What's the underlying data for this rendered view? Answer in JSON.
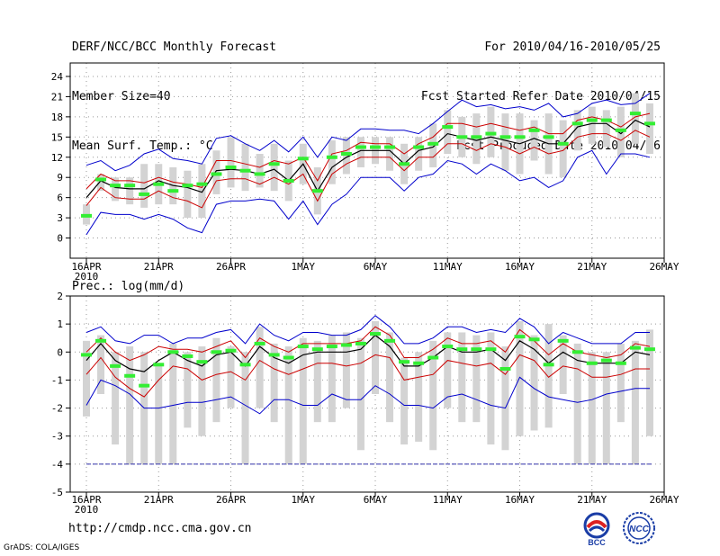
{
  "header": {
    "title": "DERF/NCC/BCC Monthly Forecast",
    "member_size": "Member Size=40",
    "variable": "Mean Surf. Temp.: °C",
    "period": "For 2010/04/16-2010/05/25",
    "started": "Fcst Started Refer Date 2010/04/15",
    "produced": "Fcst Produced Date 2010/04/16"
  },
  "footer": {
    "url": "http://cmdp.ncc.cma.gov.cn",
    "credit": "GrADS: COLA/IGES"
  },
  "logos": {
    "bcc": "BCC",
    "ncc": "NCC"
  },
  "colors": {
    "max": "#0000cc",
    "min": "#0000cc",
    "spread": "#cc0000",
    "mean": "#000000",
    "box": "#d3d3d3",
    "obs": "#33ee33",
    "grid": "#999999"
  },
  "chart_data": [
    {
      "type": "box-line",
      "title": "",
      "ylabel": "Mean Surf. Temp.: °C",
      "ylim": [
        -3,
        26
      ],
      "yticks": [
        0,
        3,
        6,
        9,
        12,
        15,
        18,
        21,
        24
      ],
      "xticks": [
        {
          "day": 0,
          "label": "16APR",
          "sublabel": "2010"
        },
        {
          "day": 5,
          "label": "21APR"
        },
        {
          "day": 10,
          "label": "26APR"
        },
        {
          "day": 15,
          "label": "1MAY"
        },
        {
          "day": 20,
          "label": "6MAY"
        },
        {
          "day": 25,
          "label": "11MAY"
        },
        {
          "day": 30,
          "label": "16MAY"
        },
        {
          "day": 35,
          "label": "21MAY"
        },
        {
          "day": 40,
          "label": "26MAY"
        }
      ],
      "grid": true,
      "days": [
        0,
        1,
        2,
        3,
        4,
        5,
        6,
        7,
        8,
        9,
        10,
        11,
        12,
        13,
        14,
        15,
        16,
        17,
        18,
        19,
        20,
        21,
        22,
        23,
        24,
        25,
        26,
        27,
        28,
        29,
        30,
        31,
        32,
        33,
        34,
        35,
        36,
        37,
        38,
        39
      ],
      "series": [
        {
          "name": "max",
          "values": [
            10.8,
            11.5,
            10.0,
            10.8,
            12.5,
            13.2,
            11.8,
            11.5,
            11.0,
            14.8,
            15.2,
            14.0,
            13.0,
            14.5,
            12.8,
            15.0,
            12.0,
            15.0,
            14.5,
            16.2,
            16.2,
            16.0,
            16.0,
            15.5,
            17.0,
            18.8,
            20.5,
            19.5,
            19.8,
            19.2,
            19.5,
            19.0,
            20.0,
            18.0,
            18.5,
            20.0,
            20.5,
            19.8,
            20.0,
            21.5
          ]
        },
        {
          "name": "upper",
          "values": [
            7.3,
            9.5,
            8.5,
            8.5,
            8.2,
            9.0,
            8.3,
            8.0,
            7.5,
            11.5,
            11.5,
            11.0,
            10.5,
            11.5,
            11.0,
            12.0,
            8.5,
            12.5,
            13.0,
            14.2,
            14.0,
            14.0,
            12.5,
            14.0,
            15.0,
            17.0,
            17.0,
            16.5,
            17.0,
            16.5,
            16.0,
            16.5,
            15.5,
            15.5,
            17.5,
            18.0,
            17.5,
            16.5,
            18.0,
            18.5
          ]
        },
        {
          "name": "mean",
          "values": [
            6.0,
            8.5,
            7.5,
            7.3,
            7.3,
            8.5,
            7.8,
            7.5,
            6.8,
            10.0,
            10.2,
            10.0,
            9.5,
            10.2,
            8.5,
            11.0,
            7.0,
            10.5,
            12.0,
            13.0,
            13.0,
            13.0,
            11.0,
            13.0,
            13.5,
            15.5,
            15.0,
            14.5,
            15.0,
            14.5,
            14.0,
            14.8,
            14.0,
            14.0,
            16.5,
            17.0,
            17.0,
            15.5,
            17.5,
            16.5
          ]
        },
        {
          "name": "lower",
          "values": [
            4.8,
            7.5,
            6.0,
            5.8,
            5.8,
            7.0,
            6.0,
            5.5,
            4.5,
            8.5,
            8.8,
            8.8,
            8.0,
            9.0,
            8.0,
            9.5,
            5.5,
            9.5,
            11.0,
            12.0,
            12.0,
            12.0,
            10.0,
            12.0,
            12.0,
            14.0,
            14.0,
            13.0,
            14.0,
            13.5,
            12.5,
            13.5,
            12.5,
            13.0,
            15.0,
            15.5,
            15.5,
            14.5,
            16.0,
            15.0
          ]
        },
        {
          "name": "min",
          "values": [
            0.5,
            3.8,
            3.5,
            3.5,
            2.8,
            3.5,
            2.8,
            1.5,
            0.8,
            5.0,
            5.5,
            5.5,
            5.8,
            5.5,
            2.8,
            5.5,
            2.0,
            5.0,
            6.5,
            9.0,
            9.0,
            9.0,
            7.0,
            9.0,
            9.5,
            11.5,
            11.0,
            9.5,
            11.0,
            10.0,
            8.5,
            9.0,
            7.5,
            8.5,
            12.0,
            13.0,
            9.5,
            12.5,
            12.5,
            12.0
          ]
        },
        {
          "name": "box_low",
          "values": [
            2.0,
            7.0,
            5.5,
            5.0,
            4.5,
            5.0,
            5.0,
            3.0,
            3.0,
            6.5,
            7.5,
            7.0,
            7.5,
            7.0,
            5.5,
            8.0,
            3.5,
            8.0,
            9.5,
            10.5,
            11.0,
            10.0,
            8.0,
            10.0,
            10.5,
            12.5,
            12.0,
            11.0,
            12.0,
            10.0,
            9.5,
            11.5,
            9.5,
            9.0,
            13.0,
            14.0,
            13.5,
            12.0,
            14.0,
            12.5
          ]
        },
        {
          "name": "box_high",
          "values": [
            5.0,
            9.5,
            9.0,
            9.0,
            11.0,
            11.0,
            10.5,
            10.0,
            11.0,
            13.0,
            15.0,
            14.0,
            12.5,
            14.0,
            11.5,
            14.0,
            10.5,
            14.5,
            15.0,
            15.0,
            15.0,
            15.0,
            14.0,
            15.0,
            17.0,
            19.0,
            18.0,
            18.5,
            19.5,
            18.5,
            18.5,
            17.5,
            18.5,
            17.5,
            19.0,
            19.5,
            19.0,
            19.5,
            21.5,
            20.0
          ]
        },
        {
          "name": "observed",
          "values": [
            3.3,
            8.7,
            7.8,
            7.8,
            6.5,
            8.0,
            7.0,
            7.8,
            8.0,
            9.5,
            10.5,
            10.0,
            9.5,
            11.0,
            8.5,
            11.8,
            7.0,
            12.0,
            12.5,
            13.5,
            13.5,
            13.5,
            11.0,
            13.5,
            14.0,
            16.5,
            15.0,
            15.0,
            15.5,
            15.0,
            15.0,
            16.0,
            15.0,
            14.0,
            17.0,
            17.5,
            17.5,
            16.0,
            18.5,
            17.0
          ]
        }
      ]
    },
    {
      "type": "box-line",
      "title": "Prec.: log(mm/d)",
      "ylabel": "Prec.: log(mm/d)",
      "ylim": [
        -5,
        2
      ],
      "yticks": [
        -5,
        -4,
        -3,
        -2,
        -1,
        0,
        1,
        2
      ],
      "xticks": [
        {
          "day": 0,
          "label": "16APR",
          "sublabel": "2010"
        },
        {
          "day": 5,
          "label": "21APR"
        },
        {
          "day": 10,
          "label": "26APR"
        },
        {
          "day": 15,
          "label": "1MAY"
        },
        {
          "day": 20,
          "label": "6MAY"
        },
        {
          "day": 25,
          "label": "11MAY"
        },
        {
          "day": 30,
          "label": "16MAY"
        },
        {
          "day": 35,
          "label": "21MAY"
        },
        {
          "day": 40,
          "label": "26MAY"
        }
      ],
      "grid": true,
      "baseline": -4,
      "days": [
        0,
        1,
        2,
        3,
        4,
        5,
        6,
        7,
        8,
        9,
        10,
        11,
        12,
        13,
        14,
        15,
        16,
        17,
        18,
        19,
        20,
        21,
        22,
        23,
        24,
        25,
        26,
        27,
        28,
        29,
        30,
        31,
        32,
        33,
        34,
        35,
        36,
        37,
        38,
        39
      ],
      "series": [
        {
          "name": "max",
          "values": [
            0.7,
            0.9,
            0.4,
            0.3,
            0.6,
            0.6,
            0.3,
            0.5,
            0.5,
            0.7,
            0.8,
            0.3,
            1.0,
            0.6,
            0.4,
            0.7,
            0.7,
            0.6,
            0.6,
            0.8,
            1.3,
            0.9,
            0.3,
            0.3,
            0.5,
            0.9,
            0.9,
            0.7,
            0.8,
            0.7,
            1.2,
            0.9,
            0.3,
            0.7,
            0.5,
            0.3,
            0.3,
            0.3,
            0.7,
            0.7
          ]
        },
        {
          "name": "upper",
          "values": [
            0.0,
            0.5,
            0.0,
            -0.3,
            -0.1,
            0.2,
            0.1,
            0.1,
            0.0,
            0.2,
            0.4,
            -0.2,
            0.5,
            0.2,
            0.0,
            0.3,
            0.3,
            0.3,
            0.3,
            0.4,
            0.9,
            0.6,
            -0.2,
            -0.2,
            0.1,
            0.5,
            0.3,
            0.3,
            0.4,
            0.0,
            0.8,
            0.4,
            -0.1,
            0.3,
            0.0,
            -0.1,
            -0.2,
            -0.1,
            0.3,
            0.2
          ]
        },
        {
          "name": "mean",
          "values": [
            -0.3,
            0.3,
            -0.3,
            -0.6,
            -0.7,
            -0.3,
            0.0,
            -0.3,
            -0.5,
            -0.1,
            0.0,
            -0.5,
            0.2,
            -0.2,
            -0.4,
            -0.1,
            0.0,
            0.0,
            0.0,
            0.1,
            0.6,
            0.2,
            -0.5,
            -0.5,
            -0.2,
            0.2,
            0.0,
            0.0,
            0.1,
            -0.3,
            0.4,
            0.1,
            -0.4,
            0.0,
            -0.3,
            -0.4,
            -0.4,
            -0.4,
            0.0,
            -0.1
          ]
        },
        {
          "name": "lower",
          "values": [
            -0.8,
            -0.2,
            -0.9,
            -1.3,
            -1.6,
            -1.0,
            -0.5,
            -0.6,
            -1.0,
            -0.8,
            -0.7,
            -1.0,
            -0.3,
            -0.6,
            -0.8,
            -0.6,
            -0.4,
            -0.4,
            -0.5,
            -0.4,
            -0.1,
            -0.2,
            -1.0,
            -0.9,
            -0.8,
            -0.3,
            -0.4,
            -0.5,
            -0.4,
            -0.8,
            -0.1,
            -0.3,
            -0.9,
            -0.5,
            -0.6,
            -0.9,
            -0.9,
            -0.8,
            -0.6,
            -0.6
          ]
        },
        {
          "name": "min",
          "values": [
            -1.9,
            -1.0,
            -1.2,
            -1.5,
            -2.0,
            -2.0,
            -1.9,
            -1.8,
            -1.8,
            -1.7,
            -1.6,
            -1.9,
            -2.2,
            -1.7,
            -1.7,
            -1.9,
            -1.9,
            -1.5,
            -1.7,
            -1.7,
            -1.2,
            -1.5,
            -1.9,
            -1.9,
            -2.0,
            -1.6,
            -1.5,
            -1.7,
            -1.9,
            -2.0,
            -0.9,
            -1.3,
            -1.6,
            -1.7,
            -1.8,
            -1.7,
            -1.5,
            -1.4,
            -1.3,
            -1.3
          ]
        },
        {
          "name": "box_low",
          "values": [
            -2.3,
            -1.5,
            -3.3,
            -4.0,
            -4.0,
            -4.0,
            -4.0,
            -2.7,
            -3.0,
            -2.5,
            -2.0,
            -4.0,
            -2.0,
            -2.5,
            -4.0,
            -4.0,
            -2.5,
            -2.5,
            -2.0,
            -3.5,
            -1.5,
            -2.5,
            -3.3,
            -3.2,
            -3.5,
            -2.0,
            -2.5,
            -2.5,
            -3.3,
            -3.5,
            -3.0,
            -2.8,
            -2.7,
            -1.5,
            -4.0,
            -4.0,
            -4.0,
            -2.5,
            -4.0,
            -3.0
          ]
        },
        {
          "name": "box_high",
          "values": [
            0.4,
            0.6,
            0.0,
            0.2,
            0.0,
            -0.4,
            0.3,
            0.0,
            0.2,
            0.5,
            0.2,
            0.0,
            0.9,
            0.3,
            0.2,
            0.5,
            0.4,
            0.6,
            0.7,
            0.5,
            1.1,
            0.7,
            -0.2,
            0.0,
            0.4,
            0.7,
            0.7,
            0.6,
            0.7,
            0.2,
            1.1,
            0.6,
            1.0,
            0.6,
            0.3,
            0.0,
            0.0,
            0.3,
            0.4,
            0.8
          ]
        },
        {
          "name": "observed",
          "values": [
            -0.1,
            0.4,
            -0.5,
            -0.85,
            -1.2,
            -0.45,
            0.0,
            -0.15,
            -0.35,
            0.0,
            0.05,
            -0.45,
            0.3,
            -0.1,
            -0.2,
            0.2,
            0.1,
            0.2,
            0.25,
            0.3,
            0.65,
            0.4,
            -0.35,
            -0.4,
            -0.2,
            0.2,
            0.1,
            0.1,
            0.1,
            -0.6,
            0.55,
            0.45,
            -0.45,
            0.4,
            0.0,
            -0.4,
            -0.3,
            -0.4,
            0.15,
            0.1
          ]
        }
      ]
    }
  ]
}
